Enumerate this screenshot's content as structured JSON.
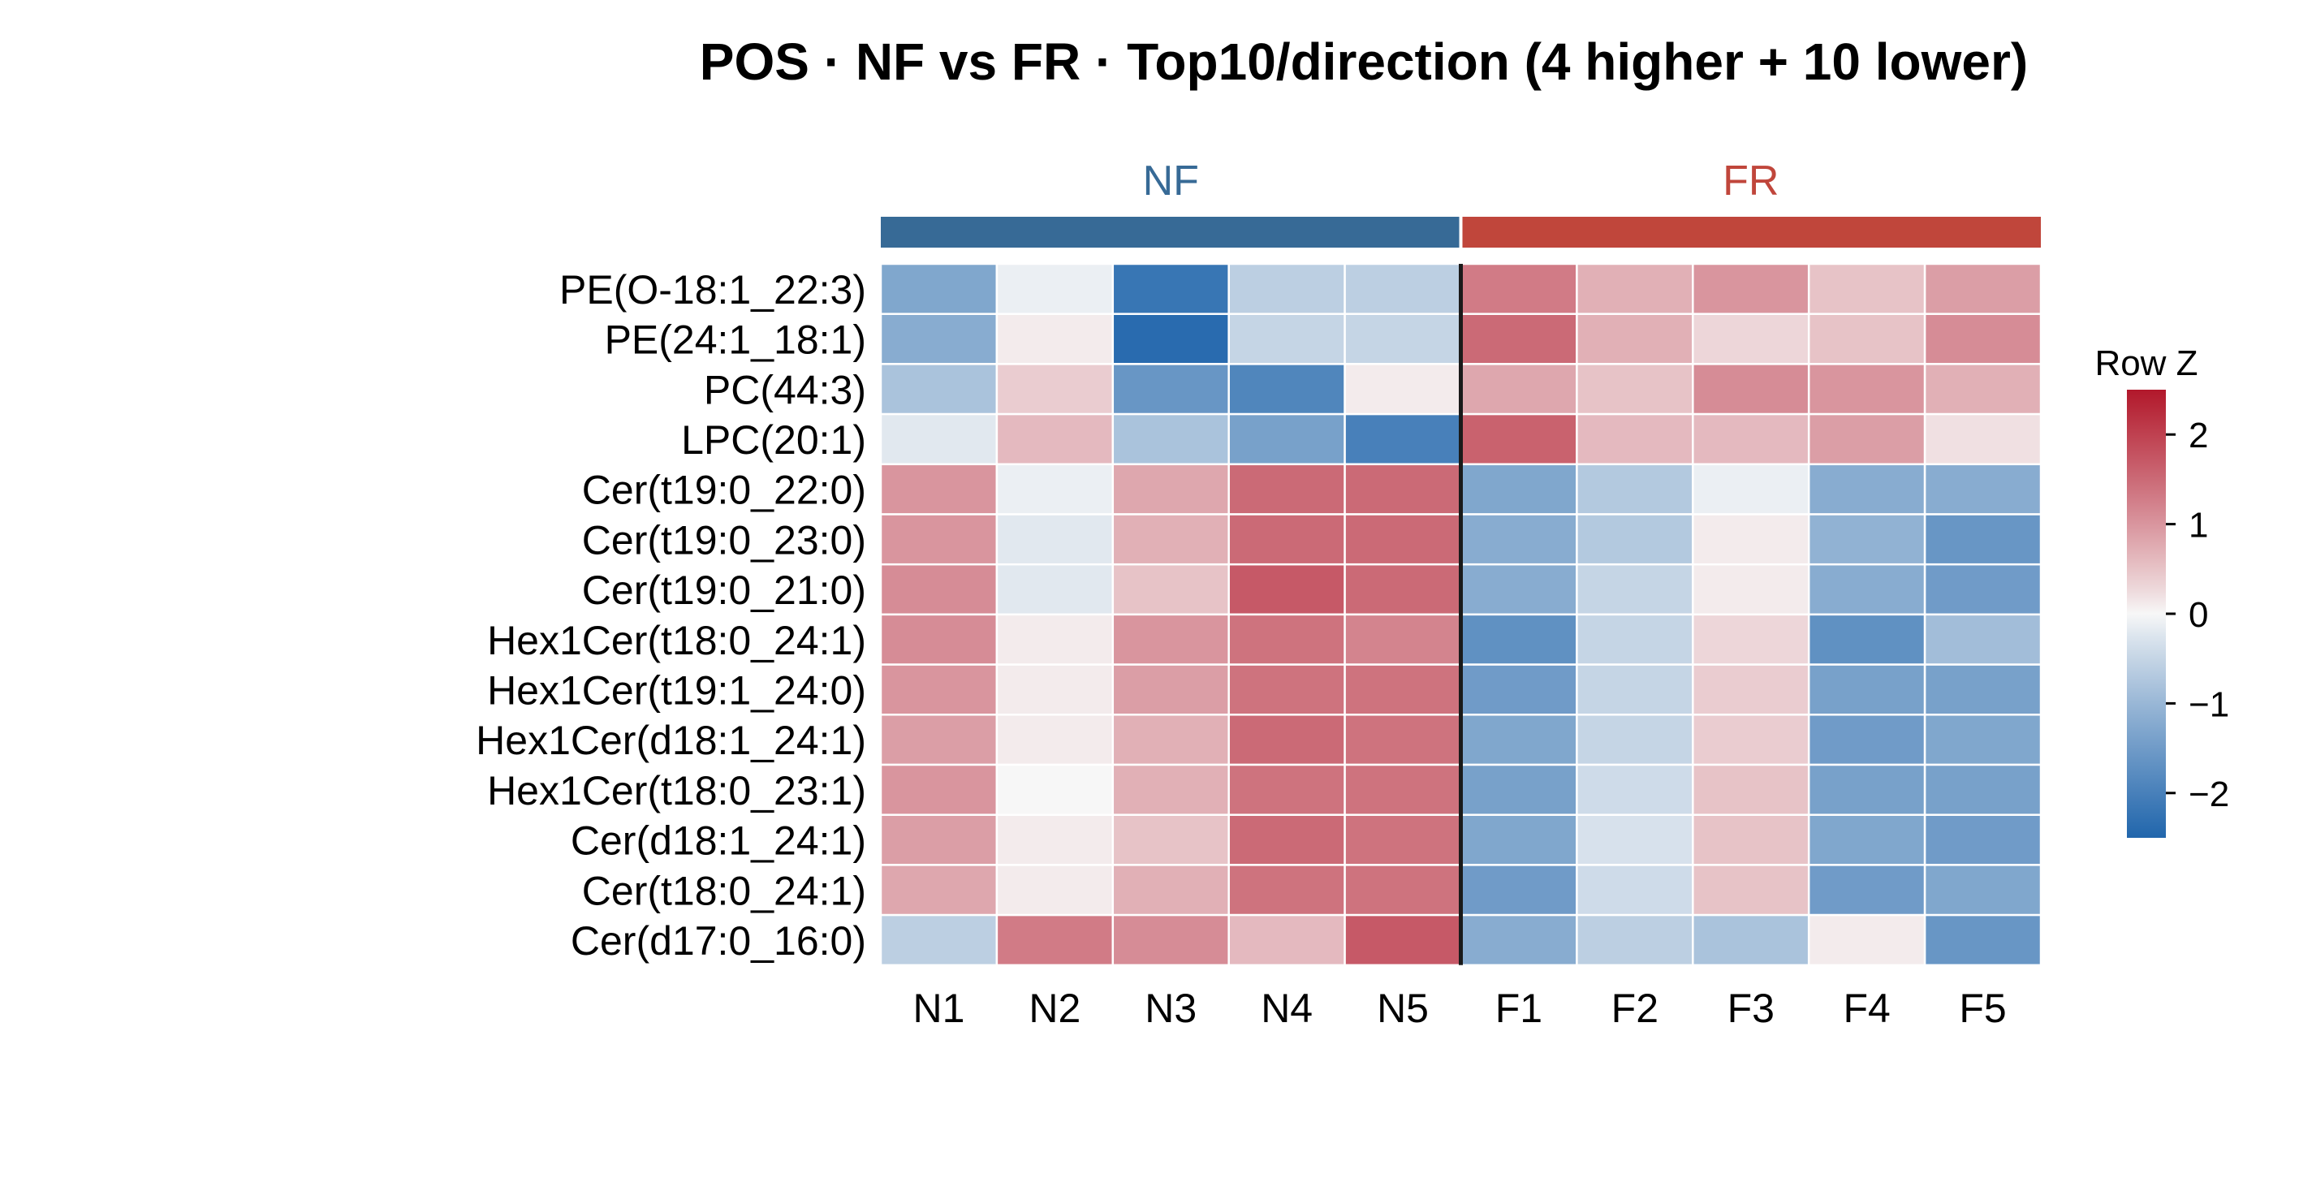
{
  "chart_data": {
    "type": "heatmap",
    "title": "POS · NF vs FR · Top10/direction (4 higher + 10 lower)",
    "groups": [
      {
        "name": "NF",
        "columns": [
          "N1",
          "N2",
          "N3",
          "N4",
          "N5"
        ],
        "color": "#376a96"
      },
      {
        "name": "FR",
        "columns": [
          "F1",
          "F2",
          "F3",
          "F4",
          "F5"
        ],
        "color": "#c0463b"
      }
    ],
    "columns": [
      "N1",
      "N2",
      "N3",
      "N4",
      "N5",
      "F1",
      "F2",
      "F3",
      "F4",
      "F5"
    ],
    "rows": [
      "PE(O-18:1_22:3)",
      "PE(24:1_18:1)",
      "PC(44:3)",
      "LPC(20:1)",
      "Cer(t19:0_22:0)",
      "Cer(t19:0_23:0)",
      "Cer(t19:0_21:0)",
      "Hex1Cer(t18:0_24:1)",
      "Hex1Cer(t19:1_24:0)",
      "Hex1Cer(d18:1_24:1)",
      "Hex1Cer(t18:0_23:1)",
      "Cer(d18:1_24:1)",
      "Cer(t18:0_24:1)",
      "Cer(d17:0_16:0)"
    ],
    "values": [
      [
        -1.3,
        -0.1,
        -2.2,
        -0.6,
        -0.6,
        1.3,
        0.7,
        1.0,
        0.5,
        0.9
      ],
      [
        -1.2,
        0.1,
        -2.4,
        -0.5,
        -0.5,
        1.5,
        0.7,
        0.3,
        0.5,
        1.1
      ],
      [
        -0.8,
        0.4,
        -1.6,
        -1.9,
        0.1,
        0.8,
        0.5,
        1.1,
        1.0,
        0.7
      ],
      [
        -0.2,
        0.6,
        -0.8,
        -1.4,
        -2.0,
        1.6,
        0.6,
        0.6,
        0.9,
        0.2
      ],
      [
        1.0,
        -0.1,
        0.8,
        1.5,
        1.5,
        -1.3,
        -0.7,
        -0.1,
        -1.2,
        -1.2
      ],
      [
        1.0,
        -0.2,
        0.7,
        1.5,
        1.5,
        -1.2,
        -0.7,
        0.1,
        -1.1,
        -1.6
      ],
      [
        1.1,
        -0.2,
        0.5,
        1.7,
        1.5,
        -1.2,
        -0.5,
        0.1,
        -1.2,
        -1.5
      ],
      [
        1.1,
        0.1,
        1.0,
        1.4,
        1.2,
        -1.7,
        -0.5,
        0.3,
        -1.7,
        -0.9
      ],
      [
        1.0,
        0.1,
        0.9,
        1.4,
        1.4,
        -1.5,
        -0.5,
        0.4,
        -1.4,
        -1.4
      ],
      [
        0.9,
        0.1,
        0.7,
        1.5,
        1.4,
        -1.3,
        -0.5,
        0.4,
        -1.5,
        -1.3
      ],
      [
        1.0,
        0.0,
        0.7,
        1.4,
        1.4,
        -1.4,
        -0.4,
        0.5,
        -1.4,
        -1.4
      ],
      [
        0.9,
        0.1,
        0.5,
        1.5,
        1.4,
        -1.3,
        -0.3,
        0.5,
        -1.3,
        -1.5
      ],
      [
        0.8,
        0.1,
        0.7,
        1.4,
        1.4,
        -1.5,
        -0.4,
        0.5,
        -1.5,
        -1.3
      ],
      [
        -0.6,
        1.3,
        1.1,
        0.6,
        1.7,
        -1.2,
        -0.6,
        -0.8,
        0.1,
        -1.6
      ]
    ],
    "colorbar": {
      "title": "Row Z",
      "range": [
        -2.5,
        2.5
      ],
      "ticks": [
        2,
        1,
        0,
        -1,
        -2
      ],
      "tick_labels": [
        "2",
        "1",
        "0",
        "−1",
        "−2"
      ],
      "colors": {
        "low": "#2166ac",
        "mid": "#f7f7f7",
        "high": "#b2182b"
      }
    },
    "group_divider_after_column": "N5"
  }
}
